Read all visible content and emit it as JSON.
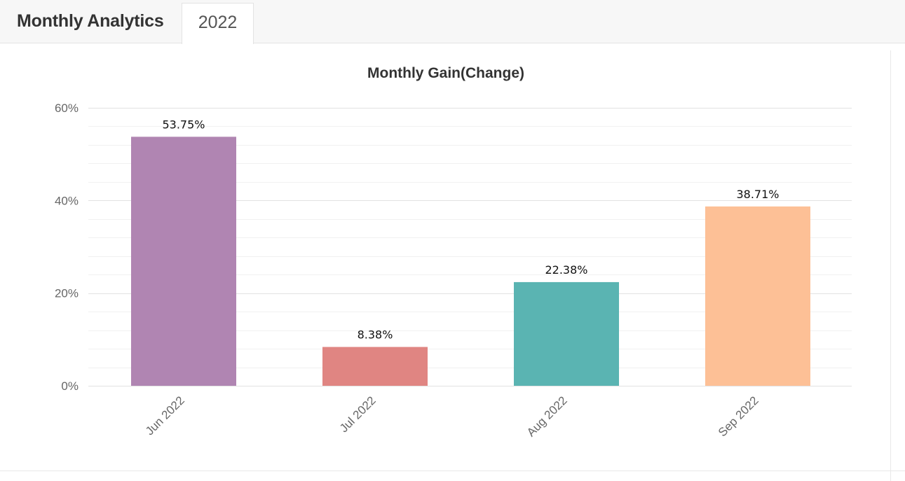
{
  "header": {
    "title": "Monthly Analytics",
    "active_tab": "2022"
  },
  "chart_data": {
    "type": "bar",
    "title": "Monthly Gain(Change)",
    "categories": [
      "Jun 2022",
      "Jul 2022",
      "Aug 2022",
      "Sep 2022"
    ],
    "values": [
      53.75,
      8.38,
      22.38,
      38.71
    ],
    "value_labels": [
      "53.75%",
      "8.38%",
      "22.38%",
      "38.71%"
    ],
    "colors": [
      "#b085b2",
      "#e08582",
      "#5ab4b2",
      "#fdc096"
    ],
    "ylim": [
      0,
      60
    ],
    "yticks": [
      0,
      20,
      40,
      60
    ],
    "ytick_labels": [
      "0%",
      "20%",
      "40%",
      "60%"
    ],
    "xlabel": "",
    "ylabel": "",
    "grid": true,
    "legend": false
  }
}
